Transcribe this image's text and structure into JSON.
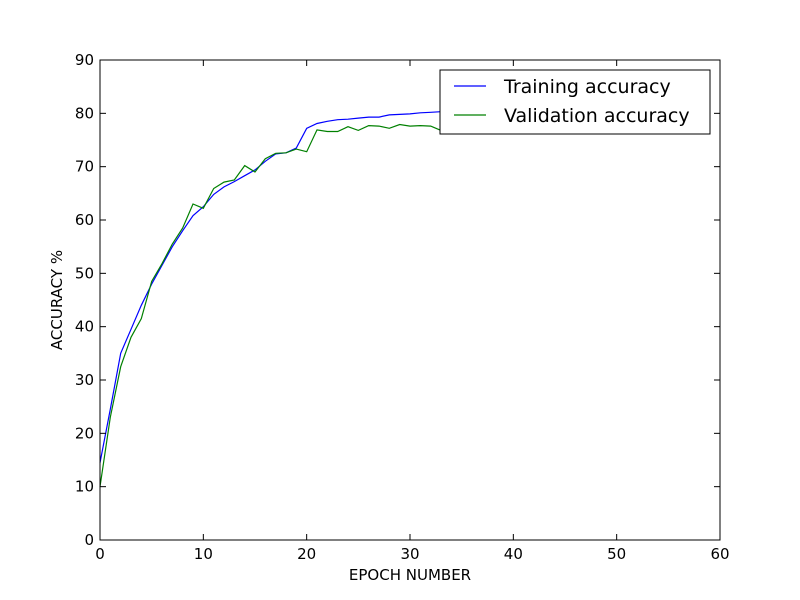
{
  "chart_data": {
    "type": "line",
    "title": "",
    "xlabel": "EPOCH NUMBER",
    "ylabel": "ACCURACY %",
    "xlim": [
      0,
      60
    ],
    "ylim": [
      0,
      90
    ],
    "xticks": [
      0,
      10,
      20,
      30,
      40,
      50,
      60
    ],
    "yticks": [
      0,
      10,
      20,
      30,
      40,
      50,
      60,
      70,
      80,
      90
    ],
    "grid": false,
    "legend_position": "top-right",
    "series": [
      {
        "name": "Training accuracy",
        "color": "#0000ff",
        "x": [
          0,
          1,
          2,
          3,
          4,
          5,
          6,
          7,
          8,
          9,
          10,
          11,
          12,
          13,
          14,
          15,
          16,
          17,
          18,
          19,
          20,
          21,
          22,
          23,
          24,
          25,
          26,
          27,
          28,
          29,
          30,
          31,
          32,
          33,
          34,
          35,
          36,
          37,
          38,
          39,
          40
        ],
        "y": [
          14.5,
          24.5,
          35.0,
          39.5,
          44.0,
          48.0,
          51.5,
          55.0,
          58.0,
          60.8,
          62.5,
          64.8,
          66.2,
          67.2,
          68.3,
          69.4,
          71.0,
          72.4,
          72.6,
          73.5,
          77.2,
          78.1,
          78.5,
          78.8,
          78.9,
          79.1,
          79.3,
          79.3,
          79.7,
          79.8,
          79.9,
          80.1,
          80.2,
          80.3,
          80.4,
          80.4,
          80.5,
          80.5,
          80.6,
          80.6,
          80.6
        ]
      },
      {
        "name": "Validation accuracy",
        "color": "#008000",
        "x": [
          0,
          1,
          2,
          3,
          4,
          5,
          6,
          7,
          8,
          9,
          10,
          11,
          12,
          13,
          14,
          15,
          16,
          17,
          18,
          19,
          20,
          21,
          22,
          23,
          24,
          25,
          26,
          27,
          28,
          29,
          30,
          31,
          32,
          33
        ],
        "y": [
          10.0,
          23.0,
          32.5,
          38.0,
          41.5,
          48.5,
          51.8,
          55.5,
          58.5,
          63.0,
          62.2,
          65.9,
          67.1,
          67.5,
          70.2,
          69.0,
          71.5,
          72.5,
          72.6,
          73.3,
          72.8,
          76.9,
          76.6,
          76.6,
          77.5,
          76.8,
          77.7,
          77.6,
          77.2,
          77.9,
          77.6,
          77.7,
          77.6,
          76.8
        ]
      }
    ]
  }
}
